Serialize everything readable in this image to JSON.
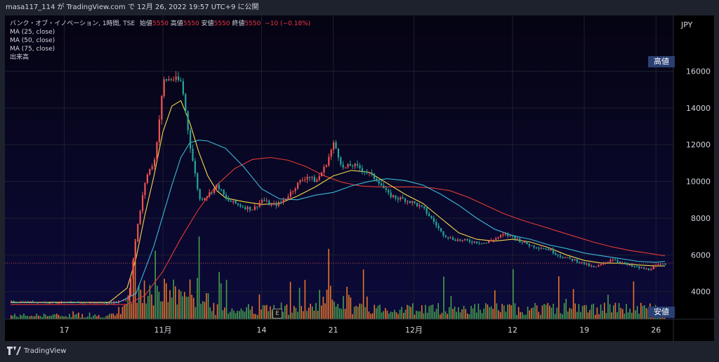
{
  "header": {
    "attribution": "masa117_114 が TradingView.com で 12月 26, 2022 19:57 UTC+9 に公開"
  },
  "legend": {
    "symbol": "バンク・オブ・イノベーション, 1時間, TSE",
    "open_label": "始値",
    "open_value": "5550",
    "high_label": "高値",
    "high_value": "5550",
    "low_label": "安値",
    "low_value": "5550",
    "close_label": "終値",
    "close_value": "5550",
    "change": "−10 (−0.18%)",
    "ma25": "MA (25, close)",
    "ma50": "MA (50, close)",
    "ma75": "MA (75, close)",
    "volume": "出来高"
  },
  "axis": {
    "currency": "JPY"
  },
  "badges": {
    "high": "高値",
    "low": "安値",
    "earnings": "E"
  },
  "footer": {
    "brand": "TradingView"
  },
  "colors": {
    "up": "#ef5350",
    "down": "#26a69a",
    "vol_up": "#ff7f27",
    "vol_down": "#4caf50",
    "ma25": "#f5d84a",
    "ma50": "#3ab8d6",
    "ma75": "#e53935",
    "background": "#07051f"
  },
  "chart_data": {
    "type": "candlestick",
    "title": "バンク・オブ・イノベーション, 1時間, TSE",
    "ylabel": "JPY",
    "ylim": [
      2500,
      18500
    ],
    "yticks": [
      4000,
      6000,
      8000,
      10000,
      12000,
      14000,
      16000
    ],
    "ytick_labels": [
      "4000",
      "6000",
      "8000",
      "10000",
      "12000",
      "14000",
      "16000"
    ],
    "xtick_labels": [
      "17",
      "11月",
      "14",
      "21",
      "12月",
      "12",
      "19",
      "26"
    ],
    "xtick_index": [
      6,
      17,
      28,
      36,
      45,
      56,
      64,
      72
    ],
    "price_path": [
      [
        0,
        3450
      ],
      [
        8,
        3400
      ],
      [
        11,
        3380
      ],
      [
        13,
        3600
      ],
      [
        14,
        7300
      ],
      [
        15,
        10200
      ],
      [
        16,
        11200
      ],
      [
        17,
        15500
      ],
      [
        18,
        15600
      ],
      [
        19,
        15400
      ],
      [
        20,
        11800
      ],
      [
        21,
        9000
      ],
      [
        22,
        9300
      ],
      [
        23,
        9800
      ],
      [
        24,
        9000
      ],
      [
        25,
        8800
      ],
      [
        26,
        8600
      ],
      [
        27,
        8500
      ],
      [
        28,
        9000
      ],
      [
        29,
        8700
      ],
      [
        30,
        8800
      ],
      [
        31,
        9300
      ],
      [
        32,
        9900
      ],
      [
        33,
        10300
      ],
      [
        34,
        10000
      ],
      [
        35,
        10800
      ],
      [
        36,
        12100
      ],
      [
        37,
        10700
      ],
      [
        38,
        10900
      ],
      [
        39,
        10700
      ],
      [
        40,
        10400
      ],
      [
        41,
        10000
      ],
      [
        42,
        9300
      ],
      [
        43,
        9100
      ],
      [
        44,
        9000
      ],
      [
        45,
        8800
      ],
      [
        46,
        8500
      ],
      [
        47,
        7900
      ],
      [
        48,
        7200
      ],
      [
        49,
        6900
      ],
      [
        50,
        6800
      ],
      [
        51,
        6750
      ],
      [
        52,
        6700
      ],
      [
        53,
        6650
      ],
      [
        54,
        6900
      ],
      [
        55,
        7100
      ],
      [
        56,
        7000
      ],
      [
        57,
        6700
      ],
      [
        58,
        6500
      ],
      [
        59,
        6400
      ],
      [
        60,
        6300
      ],
      [
        61,
        6000
      ],
      [
        62,
        5800
      ],
      [
        63,
        5700
      ],
      [
        64,
        5500
      ],
      [
        65,
        5300
      ],
      [
        66,
        5500
      ],
      [
        67,
        5800
      ],
      [
        68,
        5600
      ],
      [
        69,
        5400
      ],
      [
        70,
        5300
      ],
      [
        71,
        5200
      ],
      [
        72,
        5400
      ],
      [
        73,
        5550
      ]
    ],
    "ma25_path": [
      [
        0,
        3420
      ],
      [
        11,
        3420
      ],
      [
        13,
        4200
      ],
      [
        14,
        5800
      ],
      [
        15,
        8200
      ],
      [
        16,
        10300
      ],
      [
        17,
        12700
      ],
      [
        18,
        14100
      ],
      [
        19,
        14400
      ],
      [
        20,
        13200
      ],
      [
        21,
        11600
      ],
      [
        22,
        10300
      ],
      [
        23,
        9500
      ],
      [
        24,
        9100
      ],
      [
        26,
        8900
      ],
      [
        28,
        8750
      ],
      [
        30,
        8800
      ],
      [
        32,
        9200
      ],
      [
        34,
        9700
      ],
      [
        36,
        10300
      ],
      [
        38,
        10600
      ],
      [
        40,
        10500
      ],
      [
        42,
        9900
      ],
      [
        44,
        9300
      ],
      [
        46,
        8800
      ],
      [
        48,
        8000
      ],
      [
        50,
        7200
      ],
      [
        52,
        6850
      ],
      [
        54,
        6750
      ],
      [
        56,
        6850
      ],
      [
        58,
        6700
      ],
      [
        60,
        6400
      ],
      [
        62,
        6000
      ],
      [
        64,
        5700
      ],
      [
        66,
        5550
      ],
      [
        68,
        5550
      ],
      [
        70,
        5450
      ],
      [
        72,
        5400
      ],
      [
        73,
        5400
      ]
    ],
    "ma50_path": [
      [
        0,
        3400
      ],
      [
        12,
        3400
      ],
      [
        14,
        3900
      ],
      [
        16,
        6500
      ],
      [
        18,
        9800
      ],
      [
        19,
        11300
      ],
      [
        20,
        12100
      ],
      [
        21,
        12250
      ],
      [
        22,
        12200
      ],
      [
        24,
        11800
      ],
      [
        26,
        10800
      ],
      [
        28,
        9600
      ],
      [
        30,
        9050
      ],
      [
        32,
        9000
      ],
      [
        34,
        9250
      ],
      [
        36,
        9400
      ],
      [
        38,
        9750
      ],
      [
        40,
        10000
      ],
      [
        42,
        10150
      ],
      [
        44,
        10050
      ],
      [
        46,
        9800
      ],
      [
        48,
        9300
      ],
      [
        50,
        8700
      ],
      [
        52,
        8000
      ],
      [
        54,
        7400
      ],
      [
        56,
        7050
      ],
      [
        58,
        6850
      ],
      [
        60,
        6550
      ],
      [
        62,
        6350
      ],
      [
        64,
        6100
      ],
      [
        66,
        5950
      ],
      [
        68,
        5800
      ],
      [
        70,
        5650
      ],
      [
        72,
        5600
      ],
      [
        73,
        5650
      ]
    ],
    "ma75_path": [
      [
        0,
        3300
      ],
      [
        13,
        3300
      ],
      [
        15,
        3800
      ],
      [
        17,
        5100
      ],
      [
        19,
        6900
      ],
      [
        21,
        8500
      ],
      [
        23,
        9800
      ],
      [
        25,
        10700
      ],
      [
        27,
        11200
      ],
      [
        29,
        11300
      ],
      [
        31,
        11150
      ],
      [
        33,
        10800
      ],
      [
        35,
        10300
      ],
      [
        37,
        9950
      ],
      [
        39,
        9750
      ],
      [
        41,
        9700
      ],
      [
        43,
        9700
      ],
      [
        45,
        9700
      ],
      [
        47,
        9650
      ],
      [
        49,
        9500
      ],
      [
        51,
        9150
      ],
      [
        53,
        8700
      ],
      [
        55,
        8250
      ],
      [
        57,
        7900
      ],
      [
        59,
        7600
      ],
      [
        61,
        7300
      ],
      [
        63,
        7000
      ],
      [
        65,
        6700
      ],
      [
        67,
        6450
      ],
      [
        69,
        6250
      ],
      [
        71,
        6100
      ],
      [
        73,
        5950
      ]
    ],
    "last_price": 5550
  }
}
